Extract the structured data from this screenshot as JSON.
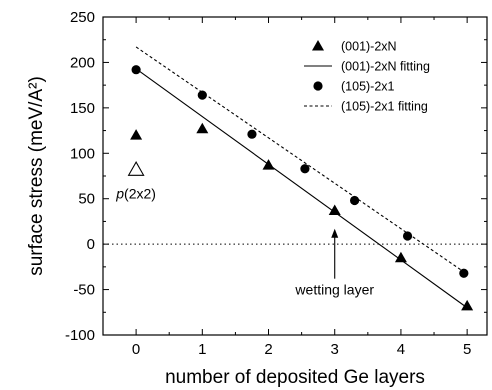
{
  "chart_data": {
    "type": "scatter",
    "title": "",
    "xlabel": "number of deposited Ge layers",
    "ylabel": "surface stress (meV/A²)",
    "xlim": [
      -0.5,
      5.3
    ],
    "ylim": [
      -100,
      250
    ],
    "x_ticks": [
      0,
      1,
      2,
      3,
      4,
      5
    ],
    "y_ticks": [
      -100,
      -50,
      0,
      50,
      100,
      150,
      200,
      250
    ],
    "grid": false,
    "legend_position": "top-right",
    "series": [
      {
        "name": "(001)-2xN",
        "kind": "points",
        "marker": "filled-triangle",
        "points": [
          [
            0,
            120
          ],
          [
            1,
            127
          ],
          [
            2,
            87
          ],
          [
            3,
            37
          ],
          [
            4,
            -15
          ],
          [
            5,
            -68
          ]
        ]
      },
      {
        "name": "(001)-2xN fitting",
        "kind": "line",
        "style": "solid",
        "points": [
          [
            0,
            193
          ],
          [
            5,
            -70
          ]
        ]
      },
      {
        "name": "(105)-2x1",
        "kind": "points",
        "marker": "filled-circle",
        "points": [
          [
            0,
            192
          ],
          [
            1,
            164
          ],
          [
            1.75,
            121
          ],
          [
            2.55,
            83
          ],
          [
            3.3,
            48
          ],
          [
            4.1,
            9
          ],
          [
            4.95,
            -32
          ]
        ]
      },
      {
        "name": "(105)-2x1 fitting",
        "kind": "line",
        "style": "dashed",
        "points": [
          [
            0,
            217
          ],
          [
            5,
            -33
          ]
        ]
      }
    ],
    "extra_points": [
      {
        "label": "p(2x2)",
        "marker": "open-triangle",
        "point": [
          0,
          82
        ]
      }
    ],
    "reference_lines": [
      {
        "y": 0,
        "style": "dotted"
      }
    ],
    "annotations": [
      {
        "text": "wetting layer",
        "arrow_to": [
          3,
          17
        ]
      }
    ]
  }
}
